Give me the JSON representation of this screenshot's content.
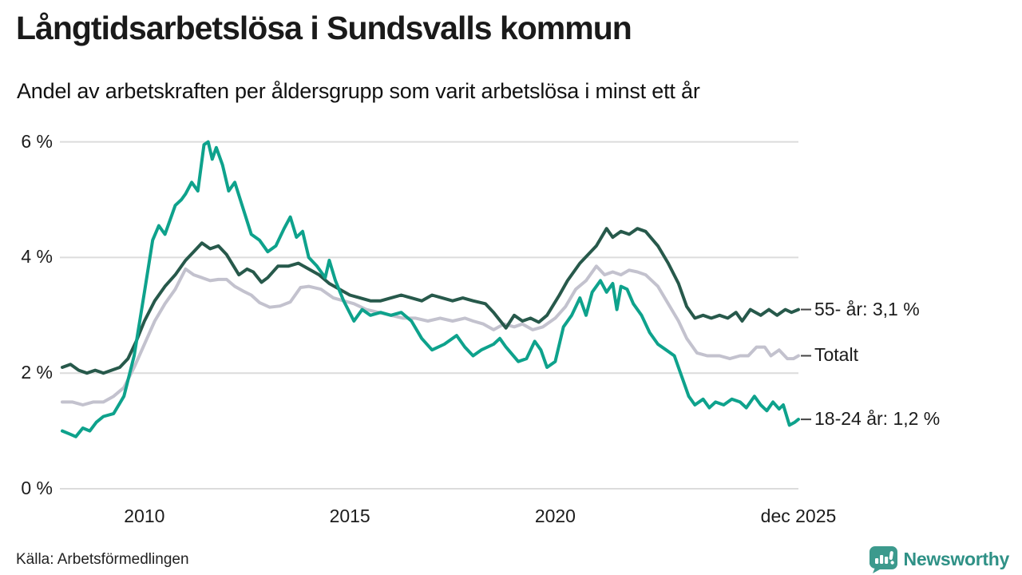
{
  "header": {
    "title": "Långtidsarbetslösa i Sundsvalls kommun",
    "subtitle": "Andel av arbetskraften per åldersgrupp som varit arbetslösa i minst ett år"
  },
  "footer": {
    "source": "Källa: Arbetsförmedlingen",
    "brand": "Newsworthy"
  },
  "colors": {
    "series_total": "#c3c2ce",
    "series_55plus": "#27594b",
    "series_1824": "#0ea28c",
    "grid": "#dcdcdc",
    "label_dash": "#444444",
    "brand_teal": "#3c9a8d",
    "brand_text": "#2f9186"
  },
  "chart_data": {
    "type": "line",
    "title": "Långtidsarbetslösa i Sundsvalls kommun",
    "subtitle": "Andel av arbetskraften per åldersgrupp som varit arbetslösa i minst ett år",
    "unit": "%",
    "x_domain": [
      2008.0,
      2025.92
    ],
    "ylim": [
      0,
      6
    ],
    "grid": "horizontal",
    "legend_position": "right-end-labels",
    "yticks": [
      {
        "value": 0,
        "label": "0 %"
      },
      {
        "value": 2,
        "label": "2 %"
      },
      {
        "value": 4,
        "label": "4 %"
      },
      {
        "value": 6,
        "label": "6 %"
      }
    ],
    "xticks": [
      {
        "value": 2010,
        "label": "2010"
      },
      {
        "value": 2015,
        "label": "2015"
      },
      {
        "value": 2020,
        "label": "2020"
      },
      {
        "value": 2025.92,
        "label": "dec 2025"
      }
    ],
    "series": [
      {
        "name": "totalt",
        "label": "Totalt",
        "color_key": "series_total",
        "end_value": 2.3,
        "points": [
          [
            2008.0,
            1.5
          ],
          [
            2008.25,
            1.5
          ],
          [
            2008.5,
            1.45
          ],
          [
            2008.75,
            1.5
          ],
          [
            2009.0,
            1.5
          ],
          [
            2009.25,
            1.6
          ],
          [
            2009.5,
            1.75
          ],
          [
            2009.75,
            2.1
          ],
          [
            2010.0,
            2.5
          ],
          [
            2010.25,
            2.9
          ],
          [
            2010.5,
            3.2
          ],
          [
            2010.75,
            3.45
          ],
          [
            2011.0,
            3.8
          ],
          [
            2011.2,
            3.7
          ],
          [
            2011.4,
            3.65
          ],
          [
            2011.6,
            3.6
          ],
          [
            2011.8,
            3.62
          ],
          [
            2012.0,
            3.62
          ],
          [
            2012.2,
            3.5
          ],
          [
            2012.4,
            3.42
          ],
          [
            2012.6,
            3.35
          ],
          [
            2012.8,
            3.22
          ],
          [
            2013.05,
            3.14
          ],
          [
            2013.3,
            3.16
          ],
          [
            2013.55,
            3.23
          ],
          [
            2013.8,
            3.48
          ],
          [
            2014.0,
            3.5
          ],
          [
            2014.3,
            3.45
          ],
          [
            2014.6,
            3.3
          ],
          [
            2014.85,
            3.25
          ],
          [
            2015.1,
            3.2
          ],
          [
            2015.4,
            3.1
          ],
          [
            2015.7,
            3.05
          ],
          [
            2016.0,
            3.0
          ],
          [
            2016.3,
            2.95
          ],
          [
            2016.6,
            2.95
          ],
          [
            2016.9,
            2.9
          ],
          [
            2017.2,
            2.95
          ],
          [
            2017.5,
            2.9
          ],
          [
            2017.8,
            2.95
          ],
          [
            2018.0,
            2.9
          ],
          [
            2018.25,
            2.85
          ],
          [
            2018.5,
            2.75
          ],
          [
            2018.75,
            2.85
          ],
          [
            2019.0,
            2.8
          ],
          [
            2019.2,
            2.85
          ],
          [
            2019.45,
            2.75
          ],
          [
            2019.7,
            2.8
          ],
          [
            2020.0,
            2.95
          ],
          [
            2020.25,
            3.15
          ],
          [
            2020.5,
            3.45
          ],
          [
            2020.75,
            3.6
          ],
          [
            2021.0,
            3.85
          ],
          [
            2021.2,
            3.7
          ],
          [
            2021.4,
            3.75
          ],
          [
            2021.6,
            3.7
          ],
          [
            2021.8,
            3.78
          ],
          [
            2022.0,
            3.75
          ],
          [
            2022.2,
            3.7
          ],
          [
            2022.5,
            3.5
          ],
          [
            2022.75,
            3.2
          ],
          [
            2023.0,
            2.9
          ],
          [
            2023.2,
            2.6
          ],
          [
            2023.45,
            2.35
          ],
          [
            2023.7,
            2.3
          ],
          [
            2024.0,
            2.3
          ],
          [
            2024.25,
            2.25
          ],
          [
            2024.5,
            2.3
          ],
          [
            2024.7,
            2.3
          ],
          [
            2024.9,
            2.45
          ],
          [
            2025.1,
            2.45
          ],
          [
            2025.25,
            2.3
          ],
          [
            2025.45,
            2.4
          ],
          [
            2025.65,
            2.25
          ],
          [
            2025.8,
            2.25
          ],
          [
            2025.92,
            2.3
          ]
        ]
      },
      {
        "name": "55plus",
        "label": "55- år: 3,1 %",
        "color_key": "series_55plus",
        "end_value": 3.1,
        "points": [
          [
            2008.0,
            2.1
          ],
          [
            2008.2,
            2.15
          ],
          [
            2008.4,
            2.05
          ],
          [
            2008.6,
            2.0
          ],
          [
            2008.8,
            2.05
          ],
          [
            2009.0,
            2.0
          ],
          [
            2009.2,
            2.05
          ],
          [
            2009.4,
            2.1
          ],
          [
            2009.6,
            2.25
          ],
          [
            2009.8,
            2.55
          ],
          [
            2010.0,
            2.9
          ],
          [
            2010.25,
            3.25
          ],
          [
            2010.5,
            3.5
          ],
          [
            2010.75,
            3.7
          ],
          [
            2011.0,
            3.95
          ],
          [
            2011.2,
            4.1
          ],
          [
            2011.4,
            4.25
          ],
          [
            2011.6,
            4.15
          ],
          [
            2011.8,
            4.2
          ],
          [
            2012.0,
            4.05
          ],
          [
            2012.3,
            3.7
          ],
          [
            2012.5,
            3.8
          ],
          [
            2012.65,
            3.75
          ],
          [
            2012.85,
            3.57
          ],
          [
            2013.0,
            3.65
          ],
          [
            2013.25,
            3.85
          ],
          [
            2013.5,
            3.85
          ],
          [
            2013.75,
            3.9
          ],
          [
            2014.0,
            3.8
          ],
          [
            2014.25,
            3.7
          ],
          [
            2014.5,
            3.55
          ],
          [
            2014.75,
            3.45
          ],
          [
            2015.0,
            3.35
          ],
          [
            2015.25,
            3.3
          ],
          [
            2015.5,
            3.25
          ],
          [
            2015.75,
            3.25
          ],
          [
            2016.0,
            3.3
          ],
          [
            2016.25,
            3.35
          ],
          [
            2016.5,
            3.3
          ],
          [
            2016.75,
            3.25
          ],
          [
            2017.0,
            3.35
          ],
          [
            2017.25,
            3.3
          ],
          [
            2017.5,
            3.25
          ],
          [
            2017.75,
            3.3
          ],
          [
            2018.0,
            3.25
          ],
          [
            2018.3,
            3.2
          ],
          [
            2018.5,
            3.05
          ],
          [
            2018.8,
            2.78
          ],
          [
            2019.0,
            3.0
          ],
          [
            2019.2,
            2.9
          ],
          [
            2019.4,
            2.95
          ],
          [
            2019.6,
            2.88
          ],
          [
            2019.8,
            3.0
          ],
          [
            2020.1,
            3.35
          ],
          [
            2020.3,
            3.6
          ],
          [
            2020.6,
            3.9
          ],
          [
            2020.8,
            4.05
          ],
          [
            2021.0,
            4.2
          ],
          [
            2021.25,
            4.5
          ],
          [
            2021.4,
            4.35
          ],
          [
            2021.6,
            4.45
          ],
          [
            2021.8,
            4.4
          ],
          [
            2022.0,
            4.5
          ],
          [
            2022.2,
            4.45
          ],
          [
            2022.5,
            4.2
          ],
          [
            2022.75,
            3.9
          ],
          [
            2023.0,
            3.55
          ],
          [
            2023.2,
            3.15
          ],
          [
            2023.4,
            2.95
          ],
          [
            2023.6,
            3.0
          ],
          [
            2023.8,
            2.95
          ],
          [
            2024.0,
            3.0
          ],
          [
            2024.2,
            2.95
          ],
          [
            2024.4,
            3.05
          ],
          [
            2024.55,
            2.9
          ],
          [
            2024.75,
            3.1
          ],
          [
            2025.0,
            3.0
          ],
          [
            2025.2,
            3.1
          ],
          [
            2025.4,
            3.0
          ],
          [
            2025.6,
            3.1
          ],
          [
            2025.75,
            3.05
          ],
          [
            2025.92,
            3.1
          ]
        ]
      },
      {
        "name": "18-24",
        "label": "18-24 år: 1,2 %",
        "color_key": "series_1824",
        "end_value": 1.2,
        "points": [
          [
            2008.0,
            1.0
          ],
          [
            2008.17,
            0.95
          ],
          [
            2008.33,
            0.9
          ],
          [
            2008.5,
            1.05
          ],
          [
            2008.67,
            1.0
          ],
          [
            2008.83,
            1.15
          ],
          [
            2009.0,
            1.25
          ],
          [
            2009.25,
            1.3
          ],
          [
            2009.5,
            1.6
          ],
          [
            2009.75,
            2.3
          ],
          [
            2010.0,
            3.4
          ],
          [
            2010.2,
            4.3
          ],
          [
            2010.35,
            4.55
          ],
          [
            2010.5,
            4.4
          ],
          [
            2010.75,
            4.9
          ],
          [
            2010.9,
            5.0
          ],
          [
            2011.0,
            5.1
          ],
          [
            2011.15,
            5.3
          ],
          [
            2011.3,
            5.15
          ],
          [
            2011.45,
            5.95
          ],
          [
            2011.55,
            6.0
          ],
          [
            2011.65,
            5.7
          ],
          [
            2011.75,
            5.9
          ],
          [
            2011.9,
            5.6
          ],
          [
            2012.05,
            5.15
          ],
          [
            2012.2,
            5.3
          ],
          [
            2012.4,
            4.85
          ],
          [
            2012.6,
            4.4
          ],
          [
            2012.8,
            4.3
          ],
          [
            2013.0,
            4.1
          ],
          [
            2013.2,
            4.2
          ],
          [
            2013.4,
            4.5
          ],
          [
            2013.55,
            4.7
          ],
          [
            2013.7,
            4.35
          ],
          [
            2013.85,
            4.45
          ],
          [
            2014.0,
            4.0
          ],
          [
            2014.2,
            3.85
          ],
          [
            2014.4,
            3.65
          ],
          [
            2014.5,
            3.95
          ],
          [
            2014.65,
            3.6
          ],
          [
            2014.85,
            3.25
          ],
          [
            2015.1,
            2.9
          ],
          [
            2015.3,
            3.1
          ],
          [
            2015.5,
            3.0
          ],
          [
            2015.75,
            3.05
          ],
          [
            2016.0,
            3.0
          ],
          [
            2016.25,
            3.05
          ],
          [
            2016.5,
            2.9
          ],
          [
            2016.75,
            2.6
          ],
          [
            2017.0,
            2.4
          ],
          [
            2017.3,
            2.5
          ],
          [
            2017.6,
            2.65
          ],
          [
            2017.8,
            2.45
          ],
          [
            2018.0,
            2.3
          ],
          [
            2018.2,
            2.4
          ],
          [
            2018.5,
            2.5
          ],
          [
            2018.65,
            2.6
          ],
          [
            2018.8,
            2.45
          ],
          [
            2019.1,
            2.2
          ],
          [
            2019.3,
            2.25
          ],
          [
            2019.5,
            2.55
          ],
          [
            2019.65,
            2.4
          ],
          [
            2019.8,
            2.1
          ],
          [
            2020.0,
            2.2
          ],
          [
            2020.2,
            2.8
          ],
          [
            2020.4,
            3.0
          ],
          [
            2020.6,
            3.3
          ],
          [
            2020.75,
            3.0
          ],
          [
            2020.9,
            3.4
          ],
          [
            2021.1,
            3.6
          ],
          [
            2021.25,
            3.4
          ],
          [
            2021.4,
            3.55
          ],
          [
            2021.5,
            3.1
          ],
          [
            2021.6,
            3.5
          ],
          [
            2021.75,
            3.45
          ],
          [
            2021.9,
            3.2
          ],
          [
            2022.1,
            3.0
          ],
          [
            2022.3,
            2.7
          ],
          [
            2022.5,
            2.5
          ],
          [
            2022.7,
            2.4
          ],
          [
            2022.9,
            2.3
          ],
          [
            2023.1,
            1.9
          ],
          [
            2023.25,
            1.6
          ],
          [
            2023.4,
            1.45
          ],
          [
            2023.6,
            1.55
          ],
          [
            2023.75,
            1.4
          ],
          [
            2023.9,
            1.5
          ],
          [
            2024.1,
            1.45
          ],
          [
            2024.3,
            1.55
          ],
          [
            2024.5,
            1.5
          ],
          [
            2024.65,
            1.4
          ],
          [
            2024.85,
            1.6
          ],
          [
            2025.0,
            1.45
          ],
          [
            2025.15,
            1.35
          ],
          [
            2025.3,
            1.5
          ],
          [
            2025.45,
            1.38
          ],
          [
            2025.55,
            1.45
          ],
          [
            2025.7,
            1.1
          ],
          [
            2025.83,
            1.15
          ],
          [
            2025.92,
            1.2
          ]
        ]
      }
    ]
  }
}
